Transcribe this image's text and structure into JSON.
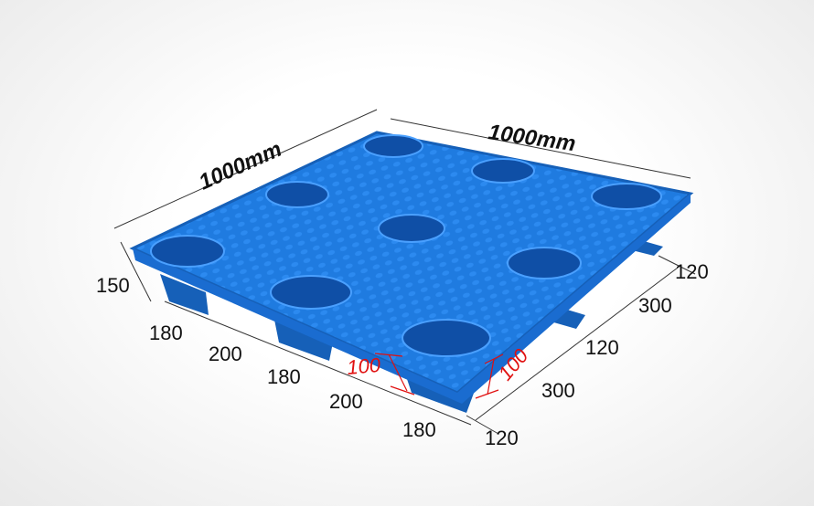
{
  "product": {
    "color": "#1e78dc",
    "edge_color": "#1660b8"
  },
  "dimensions": {
    "length": "1000mm",
    "width": "1000mm",
    "height": "150",
    "front_edge": [
      "180",
      "200",
      "180",
      "200",
      "180"
    ],
    "right_edge": [
      "120",
      "300",
      "120",
      "300",
      "120"
    ],
    "foot_heights": [
      "100",
      "100"
    ]
  }
}
